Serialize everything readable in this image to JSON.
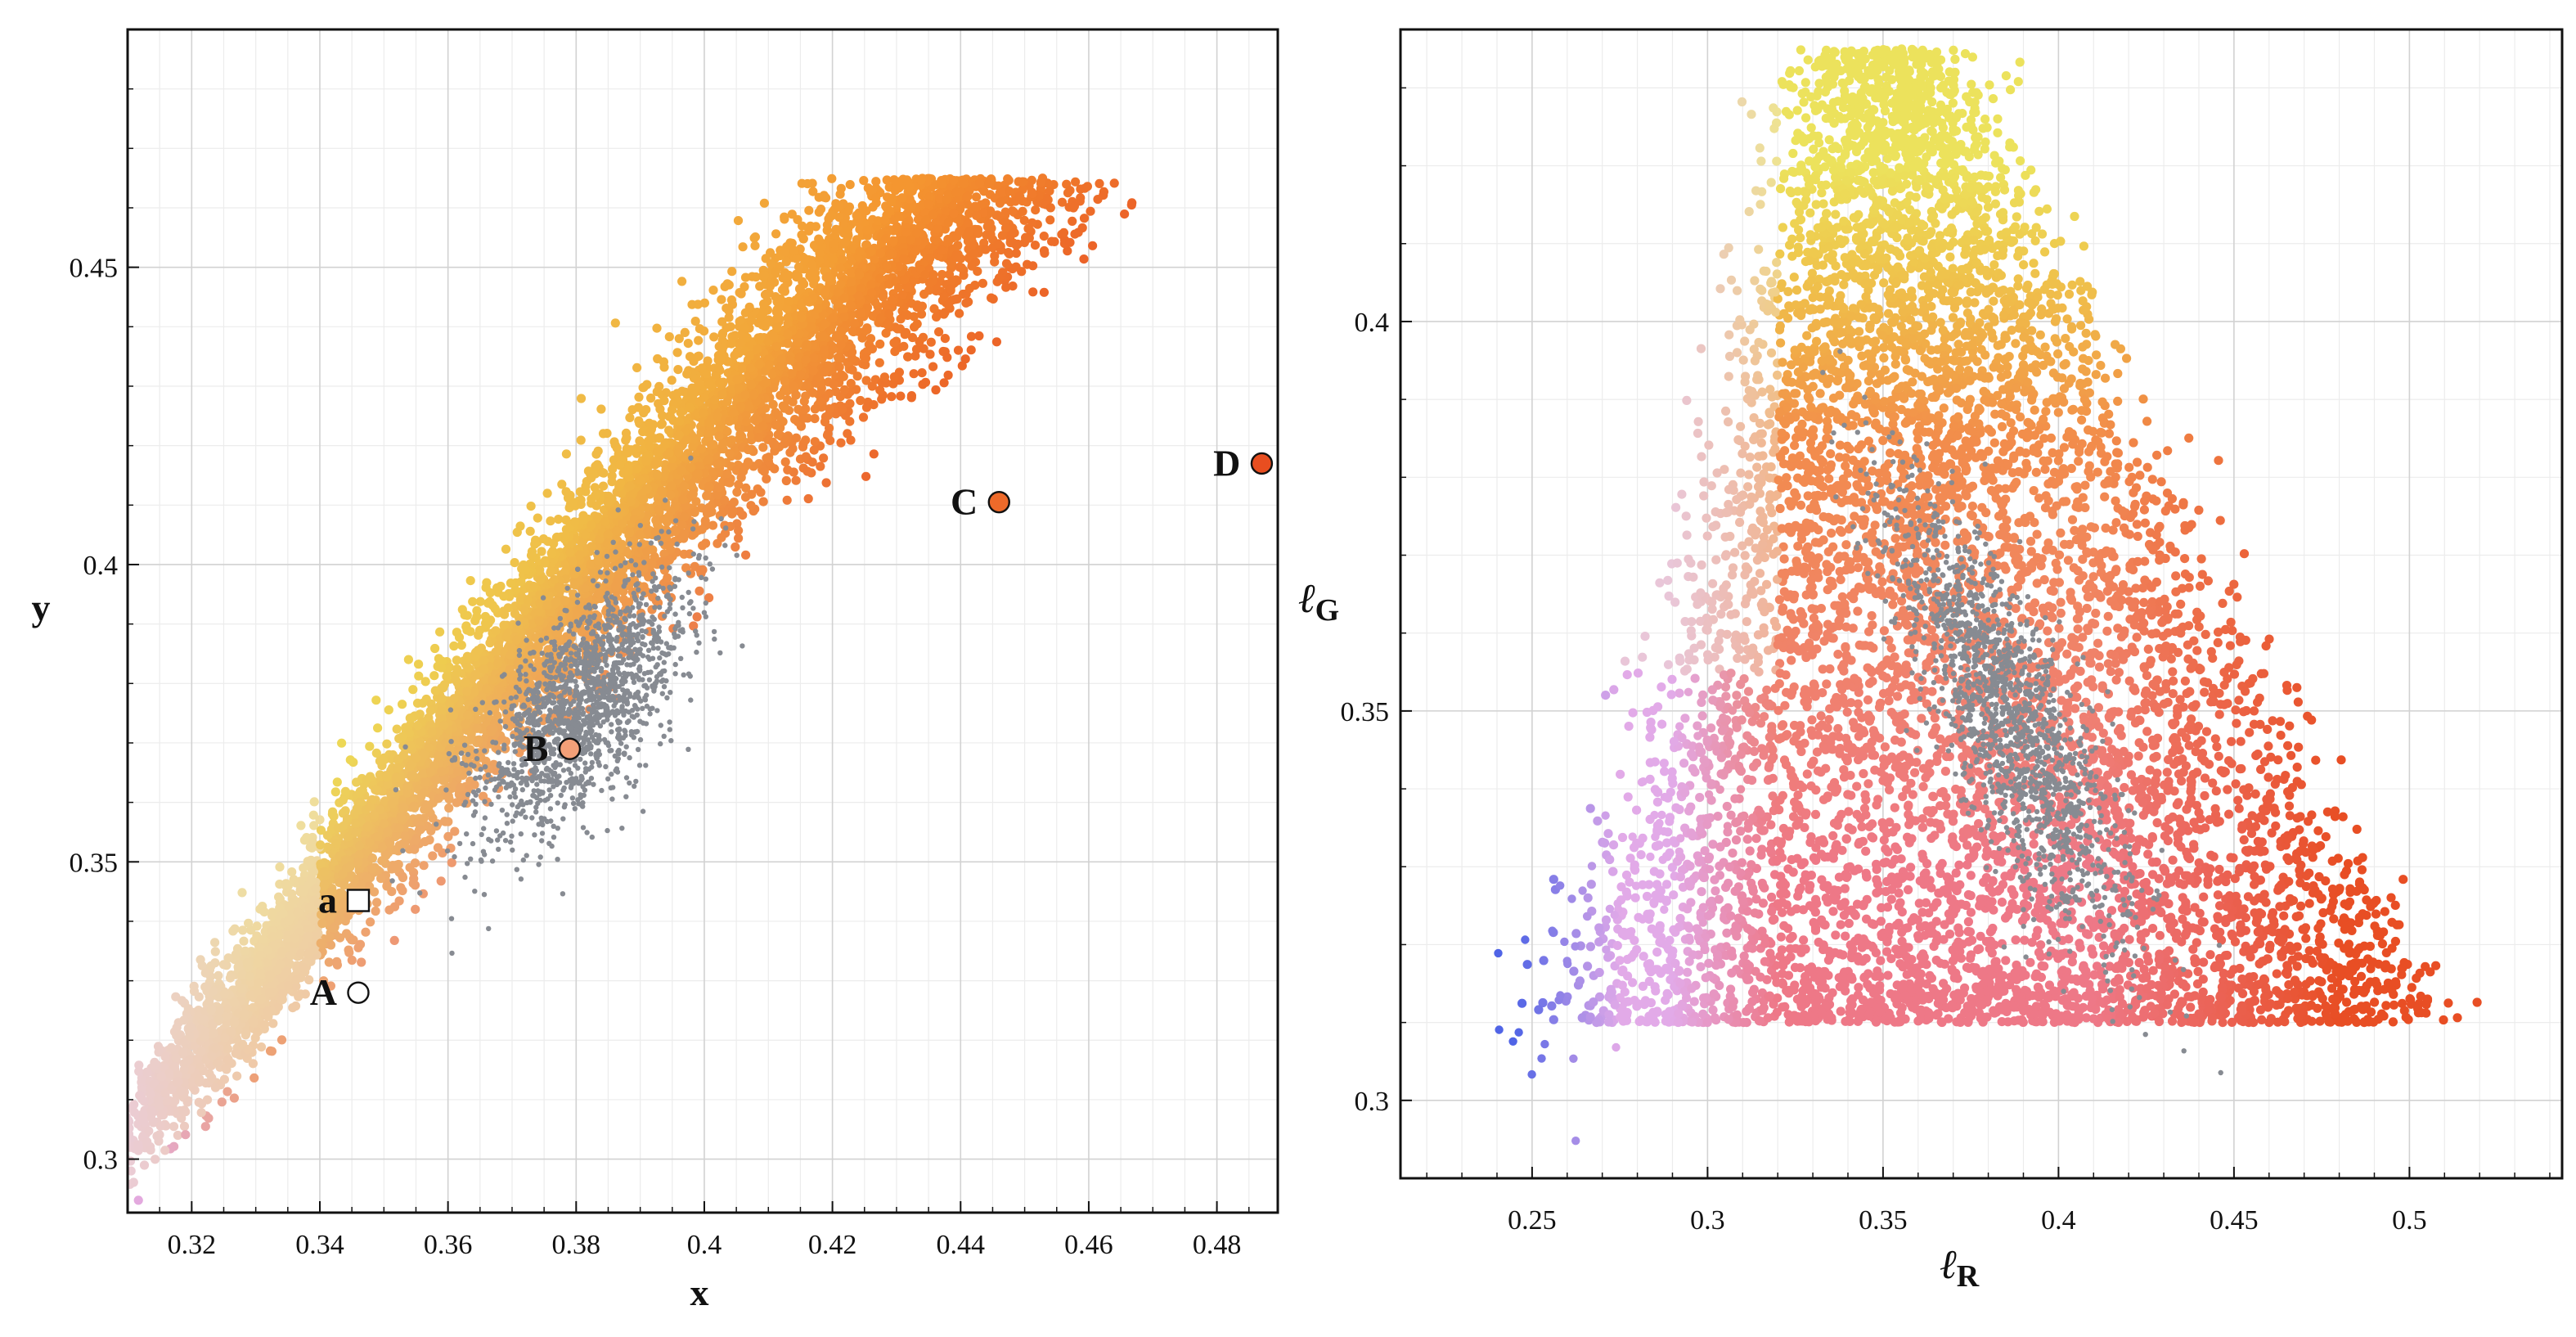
{
  "chart_data": [
    {
      "type": "scatter",
      "title": "",
      "xlabel": "x",
      "ylabel": "y",
      "xlim": [
        0.31,
        0.4895
      ],
      "ylim": [
        0.291,
        0.49
      ],
      "xticks": [
        0.32,
        0.34,
        0.36,
        0.38,
        0.4,
        0.42,
        0.44,
        0.46,
        0.48
      ],
      "xtick_labels": [
        "0.32",
        "0.34",
        "0.36",
        "0.38",
        "0.4",
        "0.42",
        "0.44",
        "0.46",
        "0.48"
      ],
      "yticks": [
        0.3,
        0.35,
        0.4,
        0.45
      ],
      "ytick_labels": [
        "0.3",
        "0.35",
        "0.4",
        "0.45"
      ],
      "grid": true,
      "series": [
        {
          "name": "samples",
          "description": "colored point cloud (yellow / orange / pink / red), approx. 9000 points"
        },
        {
          "name": "gray subset",
          "description": "small gray points concentrated near B"
        }
      ],
      "annotations": [
        {
          "label": "a",
          "x": 0.346,
          "y": 0.3435,
          "marker": "square",
          "fill": "#ffffff"
        },
        {
          "label": "A",
          "x": 0.346,
          "y": 0.328,
          "marker": "circle",
          "fill": "#ffffff"
        },
        {
          "label": "B",
          "x": 0.379,
          "y": 0.369,
          "marker": "circle",
          "fill": "#f3a078"
        },
        {
          "label": "C",
          "x": 0.446,
          "y": 0.4105,
          "marker": "circle",
          "fill": "#ee6a2a"
        },
        {
          "label": "D",
          "x": 0.487,
          "y": 0.417,
          "marker": "circle",
          "fill": "#e84e20"
        }
      ]
    },
    {
      "type": "scatter",
      "title": "",
      "xlabel": "ℓR",
      "ylabel": "ℓG",
      "xlabel_main": "ℓ",
      "xlabel_sub": "R",
      "ylabel_main": "ℓ",
      "ylabel_sub": "G",
      "xlim": [
        0.2125,
        0.5435
      ],
      "ylim": [
        0.29,
        0.4375
      ],
      "xticks": [
        0.25,
        0.3,
        0.35,
        0.4,
        0.45,
        0.5
      ],
      "xtick_labels": [
        "0.25",
        "0.3",
        "0.35",
        "0.4",
        "0.45",
        "0.5"
      ],
      "yticks": [
        0.3,
        0.35,
        0.4
      ],
      "ytick_labels": [
        "0.3",
        "0.35",
        "0.4"
      ],
      "grid": true,
      "series": [
        {
          "name": "samples",
          "description": "colored point cloud forming a triangle, approx. 9000 points"
        },
        {
          "name": "gray subset",
          "description": "small gray points concentrated near (0.385, 0.35)"
        }
      ],
      "annotations": []
    }
  ]
}
